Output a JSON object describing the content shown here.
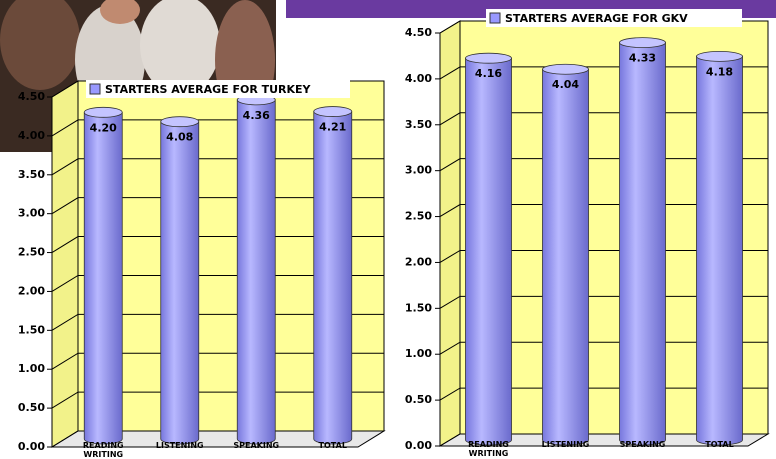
{
  "chart_data": [
    {
      "type": "bar",
      "title": "STARTERS  AVERAGE FOR TURKEY",
      "categories": [
        "READING WRITING",
        "LISTENING",
        "SPEAKING",
        "TOTAL"
      ],
      "values": [
        4.2,
        4.08,
        4.36,
        4.21
      ],
      "value_labels": [
        "4.20",
        "4.08",
        "4.36",
        "4.21"
      ],
      "color": "#9999ff",
      "ylim": [
        0,
        4.5
      ],
      "yticks": [
        {
          "value": 0,
          "label": "0.00"
        },
        {
          "value": 0.5,
          "label": "0.50"
        },
        {
          "value": 1,
          "label": "1.00"
        },
        {
          "value": 1.5,
          "label": "1.50"
        },
        {
          "value": 2,
          "label": "2.00"
        },
        {
          "value": 2.5,
          "label": "2.50"
        },
        {
          "value": 3,
          "label": "3.00"
        },
        {
          "value": 3.5,
          "label": "3.50"
        },
        {
          "value": 4,
          "label": "4.00"
        },
        {
          "value": 4.5,
          "label": "4.50"
        }
      ],
      "grid": true
    },
    {
      "type": "bar",
      "title": "STARTERS AVERAGE FOR GKV",
      "categories": [
        "READING WRITING",
        "LISTENING",
        "SPEAKING",
        "TOTAL"
      ],
      "values": [
        4.16,
        4.04,
        4.33,
        4.18
      ],
      "value_labels": [
        "4.16",
        "4.04",
        "4.33",
        "4.18"
      ],
      "color": "#9999ff",
      "ylim": [
        0,
        4.5
      ],
      "yticks": [
        {
          "value": 0,
          "label": "0.00"
        },
        {
          "value": 0.5,
          "label": "0.50"
        },
        {
          "value": 1,
          "label": "1.00"
        },
        {
          "value": 1.5,
          "label": "1.50"
        },
        {
          "value": 2,
          "label": "2.00"
        },
        {
          "value": 2.5,
          "label": "2.50"
        },
        {
          "value": 3,
          "label": "3.00"
        },
        {
          "value": 3.5,
          "label": "3.50"
        },
        {
          "value": 4,
          "label": "4.00"
        },
        {
          "value": 4.5,
          "label": "4.50"
        }
      ],
      "grid": true
    }
  ]
}
